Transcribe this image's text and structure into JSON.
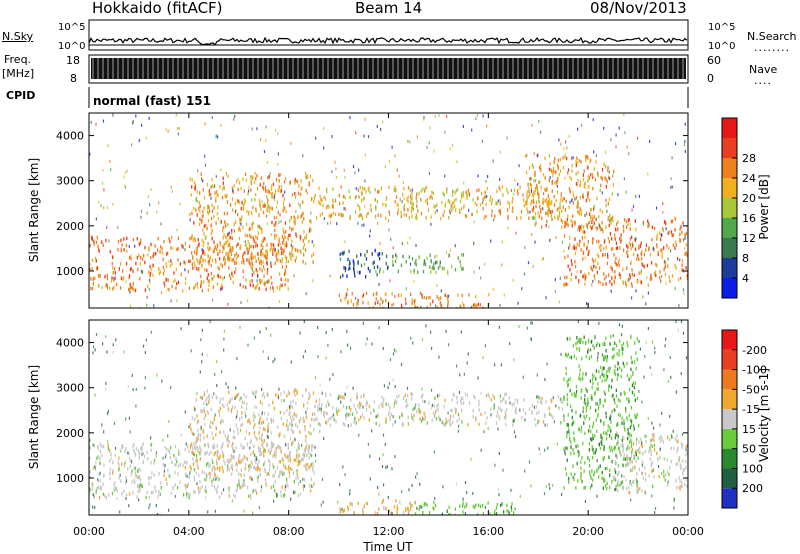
{
  "header": {
    "station": "Hokkaido (fitACF)",
    "beam": "Beam 14",
    "date": "08/Nov/2013"
  },
  "left_labels": {
    "nsky": "N.Sky",
    "freq": "Freq.",
    "freq_unit": "[MHz]",
    "cpid": "CPID"
  },
  "right_labels": {
    "nsearch": "N.Search",
    "nave": "Nave"
  },
  "cpid_text": "normal (fast) 151",
  "chart_data": [
    {
      "type": "line",
      "panel": "noise",
      "x_range": [
        "00:00",
        "24:00"
      ],
      "left_axis": {
        "label": "N.Sky",
        "ticks": [
          "10^5",
          "10^0"
        ]
      },
      "right_axis": {
        "label": "N.Search",
        "ticks": [
          "10^5",
          "10^0"
        ]
      }
    },
    {
      "type": "line",
      "panel": "frequency",
      "x_range": [
        "00:00",
        "24:00"
      ],
      "left_axis": {
        "label": "Freq. [MHz]",
        "ticks": [
          18,
          8
        ]
      },
      "right_axis": {
        "label": "Nave",
        "ticks": [
          60,
          0
        ]
      }
    },
    {
      "type": "heatmap",
      "panel": "power",
      "xlabel": "",
      "ylabel": "Slant Range [km]",
      "ylim": [
        180,
        4500
      ],
      "yticks": [
        1000,
        2000,
        3000,
        4000
      ],
      "xlim": [
        0,
        24
      ],
      "colorbar": {
        "label": "Power [dB]",
        "ticks": [
          4,
          8,
          12,
          16,
          20,
          24,
          28
        ],
        "colors": [
          "#0a1ee8",
          "#1e3c9e",
          "#3c7a50",
          "#52a84a",
          "#a8c83a",
          "#f0b020",
          "#ee8020",
          "#e84020",
          "#e81818"
        ]
      },
      "regions": [
        {
          "x": [
            0,
            8
          ],
          "y": [
            600,
            1800
          ],
          "level": 26
        },
        {
          "x": [
            4,
            9
          ],
          "y": [
            1200,
            3200
          ],
          "level": 24
        },
        {
          "x": [
            9,
            19
          ],
          "y": [
            2200,
            2900
          ],
          "level": 22
        },
        {
          "x": [
            10,
            16
          ],
          "y": [
            200,
            550
          ],
          "level": 25
        },
        {
          "x": [
            12,
            15
          ],
          "y": [
            1000,
            1400
          ],
          "level": 14
        },
        {
          "x": [
            19,
            24
          ],
          "y": [
            700,
            2200
          ],
          "level": 26
        },
        {
          "x": [
            17.5,
            21
          ],
          "y": [
            2000,
            3600
          ],
          "level": 24
        },
        {
          "x": [
            10,
            12
          ],
          "y": [
            900,
            1500
          ],
          "level": 8
        }
      ]
    },
    {
      "type": "heatmap",
      "panel": "velocity",
      "xlabel": "Time UT",
      "ylabel": "Slant Range [km]",
      "ylim": [
        180,
        4500
      ],
      "yticks": [
        1000,
        2000,
        3000,
        4000
      ],
      "xlim": [
        0,
        24
      ],
      "xticks": [
        "00:00",
        "04:00",
        "08:00",
        "12:00",
        "16:00",
        "20:00",
        "00:00"
      ],
      "colorbar": {
        "label": "Velocity [m s-1]",
        "ticks": [
          200,
          100,
          50,
          15,
          -15,
          -50,
          -100,
          -200
        ],
        "colors": [
          "#2030c0",
          "#206040",
          "#2a8a30",
          "#6acc3a",
          "#c8c8c8",
          "#f0a830",
          "#ee7a20",
          "#e84020",
          "#e81818"
        ]
      },
      "regions": [
        {
          "x": [
            0,
            9
          ],
          "y": [
            600,
            1800
          ],
          "level": 0
        },
        {
          "x": [
            4,
            9
          ],
          "y": [
            1200,
            3000
          ],
          "level": -10
        },
        {
          "x": [
            9,
            19
          ],
          "y": [
            2200,
            2900
          ],
          "level": 0
        },
        {
          "x": [
            10,
            13
          ],
          "y": [
            200,
            550
          ],
          "level": -30
        },
        {
          "x": [
            13,
            17
          ],
          "y": [
            200,
            500
          ],
          "level": 35
        },
        {
          "x": [
            19,
            22
          ],
          "y": [
            800,
            4200
          ],
          "level": 40
        },
        {
          "x": [
            21,
            24
          ],
          "y": [
            700,
            2000
          ],
          "level": 0
        }
      ]
    }
  ]
}
